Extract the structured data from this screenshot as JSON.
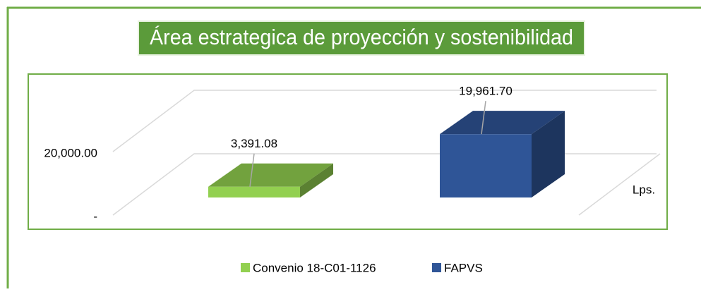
{
  "chart_data": {
    "type": "bar",
    "title": "Área estrategica de proyección y sostenibilidad",
    "y_axis_label": "Lps.",
    "ylim": [
      0,
      20000
    ],
    "yticks": [
      {
        "value": 0,
        "label": "-"
      },
      {
        "value": 20000,
        "label": "20,000.00"
      }
    ],
    "grid": true,
    "legend": "bottom",
    "series": [
      {
        "name": "Convenio 18-C01-1126",
        "color": "#92d050",
        "values": [
          3391.08
        ],
        "value_labels": [
          "3,391.08"
        ]
      },
      {
        "name": "FAPVS",
        "color": "#2f5597",
        "values": [
          19961.7
        ],
        "value_labels": [
          "19,961.70"
        ]
      }
    ]
  }
}
